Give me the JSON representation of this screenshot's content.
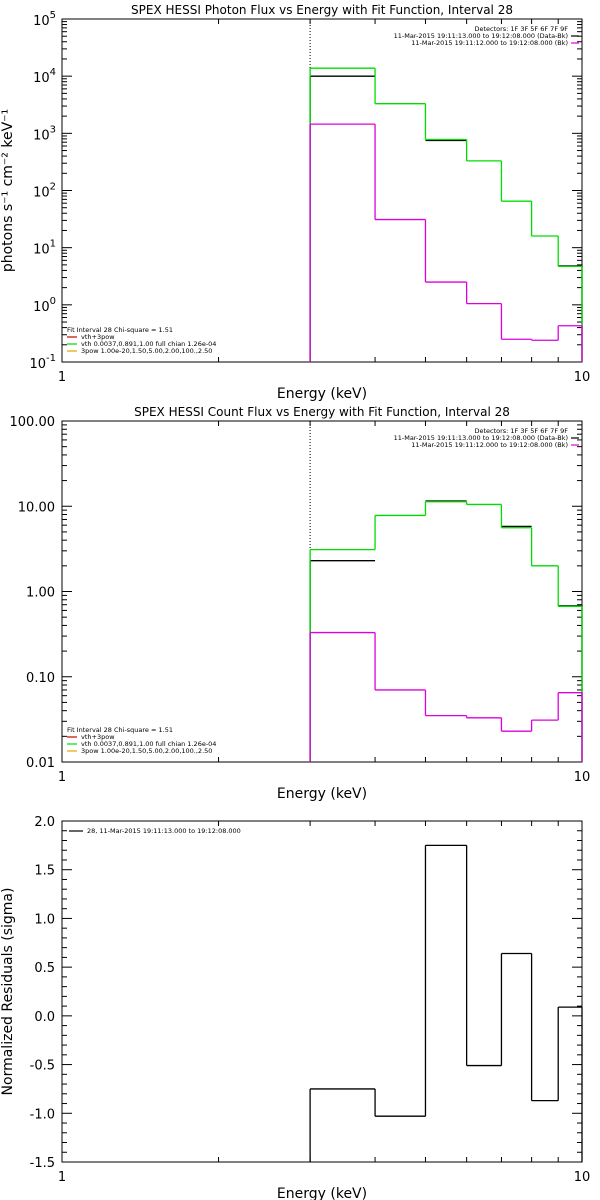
{
  "colors": {
    "background": "#ffffff",
    "axes": "#000000",
    "fit_black": "#000000",
    "fit_red": "#cc0000",
    "green": "#00dd00",
    "magenta": "#dd00dd",
    "yellow": "#ddaa00"
  },
  "chart_data": [
    {
      "type": "line",
      "title": "SPEX HESSI Photon Flux vs Energy with Fit Function, Interval 28",
      "xlabel": "Energy (keV)",
      "ylabel": "photons s⁻¹ cm⁻² keV⁻¹",
      "xscale": "log",
      "yscale": "log",
      "xlim": [
        1,
        10
      ],
      "ylim": [
        0.1,
        100000
      ],
      "xticklabels": [
        {
          "v": 1,
          "t": "1"
        },
        {
          "v": 10,
          "t": "10"
        }
      ],
      "yticklabels": [
        {
          "v": 0.1,
          "b": "10",
          "e": "-1"
        },
        {
          "v": 1,
          "b": "10",
          "e": "0"
        },
        {
          "v": 10,
          "b": "10",
          "e": "1"
        },
        {
          "v": 100,
          "b": "10",
          "e": "2"
        },
        {
          "v": 1000,
          "b": "10",
          "e": "3"
        },
        {
          "v": 10000,
          "b": "10",
          "e": "4"
        },
        {
          "v": 100000,
          "b": "10",
          "e": "5"
        }
      ],
      "vline_x": 3,
      "header_lines": [
        "Detectors: 1F 3F 5F 6F 7F 9F",
        "11-Mar-2015 19:11:13.000 to 19:12:08.000 (Data-Bk)",
        "11-Mar-2015 19:11:12.000 to 19:12:08.000 (Bk)"
      ],
      "legend": [
        "Fit Interval 28   Chi-square = 1.51",
        "vth+3pow",
        "vth 0.0037,0.891,1.00  full chian 1.26e-04",
        "3pow 1.00e-20,1.50,5.00,2.00,100.,2.50"
      ],
      "series": [
        {
          "name": "11-Mar-2015 19:11:13.000 to 19:12:08.000 (Data-Bk)",
          "color": "#000000",
          "edges": [
            3,
            4,
            5,
            6,
            7,
            8,
            9,
            10
          ],
          "values": [
            10000,
            null,
            750,
            null,
            null,
            null,
            4.8
          ]
        },
        {
          "color": "#00dd00",
          "edges": [
            3,
            4,
            5,
            6,
            7,
            8,
            9,
            10
          ],
          "values": [
            13800,
            3300,
            780,
            330,
            65,
            16,
            4.7
          ]
        },
        {
          "name": "11-Mar-2015 19:11:12.000 to 19:12:08.000 (Bk)",
          "color": "#dd00dd",
          "edges": [
            3,
            4,
            5,
            6,
            7,
            8,
            9,
            10
          ],
          "values": [
            1450,
            31,
            2.5,
            1.05,
            0.25,
            0.24,
            0.43
          ]
        }
      ]
    },
    {
      "type": "line",
      "title": "SPEX HESSI Count Flux vs Energy with Fit Function, Interval 28",
      "xlabel": "Energy (keV)",
      "ylabel": "",
      "xscale": "log",
      "yscale": "log",
      "xlim": [
        1,
        10
      ],
      "ylim": [
        0.01,
        100
      ],
      "xticklabels": [
        {
          "v": 1,
          "t": "1"
        },
        {
          "v": 10,
          "t": "10"
        }
      ],
      "yticklabels": [
        {
          "v": 0.01,
          "t": "0.01"
        },
        {
          "v": 0.1,
          "t": "0.10"
        },
        {
          "v": 1,
          "t": "1.00"
        },
        {
          "v": 10,
          "t": "10.00"
        },
        {
          "v": 100,
          "t": "100.00"
        }
      ],
      "vline_x": 3,
      "header_lines": [
        "Detectors: 1F 3F 5F 6F 7F 9F",
        "11-Mar-2015 19:11:13.000 to 19:12:08.000 (Data-Bk)",
        "11-Mar-2015 19:11:12.000 to 19:12:08.000 (Bk)"
      ],
      "legend": [
        "Fit Interval 28   Chi-square = 1.51",
        "vth+3pow",
        "vth 0.0037,0.891,1.00  full chian 1.26e-04",
        "3pow 1.00e-20,1.50,5.00,2.00,100.,2.50"
      ],
      "series": [
        {
          "name": "11-Mar-2015 19:11:13.000 to 19:12:08.000 (Data-Bk)",
          "color": "#000000",
          "edges": [
            3,
            4,
            5,
            6,
            7,
            8,
            9,
            10
          ],
          "values": [
            2.3,
            null,
            11.5,
            null,
            5.8,
            null,
            0.68
          ]
        },
        {
          "color": "#00dd00",
          "edges": [
            3,
            4,
            5,
            6,
            7,
            8,
            9,
            10
          ],
          "values": [
            3.1,
            7.8,
            11.3,
            10.5,
            5.6,
            2.0,
            0.67
          ]
        },
        {
          "name": "11-Mar-2015 19:11:12.000 to 19:12:08.000 (Bk)",
          "color": "#dd00dd",
          "edges": [
            3,
            4,
            5,
            6,
            7,
            8,
            9,
            10
          ],
          "values": [
            0.33,
            0.07,
            0.035,
            0.033,
            0.023,
            0.031,
            0.065
          ]
        }
      ]
    },
    {
      "type": "line",
      "title": "",
      "xlabel": "Energy (keV)",
      "ylabel": "Normalized Residuals (sigma)",
      "xscale": "log",
      "yscale": "linear",
      "xlim": [
        1,
        10
      ],
      "ylim": [
        -1.5,
        2.0
      ],
      "xticklabels": [
        {
          "v": 1,
          "t": "1"
        },
        {
          "v": 10,
          "t": "10"
        }
      ],
      "yticklabels": [
        {
          "v": -1.5,
          "t": "-1.5"
        },
        {
          "v": -1.0,
          "t": "-1.0"
        },
        {
          "v": -0.5,
          "t": "-0.5"
        },
        {
          "v": 0.0,
          "t": "0.0"
        },
        {
          "v": 0.5,
          "t": "0.5"
        },
        {
          "v": 1.0,
          "t": "1.0"
        },
        {
          "v": 1.5,
          "t": "1.5"
        },
        {
          "v": 2.0,
          "t": "2.0"
        }
      ],
      "legend_entry": "28, 11-Mar-2015 19:11:13.000 to 19:12:08.000",
      "series": [
        {
          "name": "28, 11-Mar-2015 19:11:13.000 to 19:12:08.000",
          "color": "#000000",
          "edges": [
            3,
            4,
            5,
            6,
            7,
            8,
            9,
            10
          ],
          "values": [
            -0.75,
            -1.03,
            1.75,
            -0.51,
            0.64,
            -0.87,
            0.09
          ]
        }
      ]
    }
  ]
}
